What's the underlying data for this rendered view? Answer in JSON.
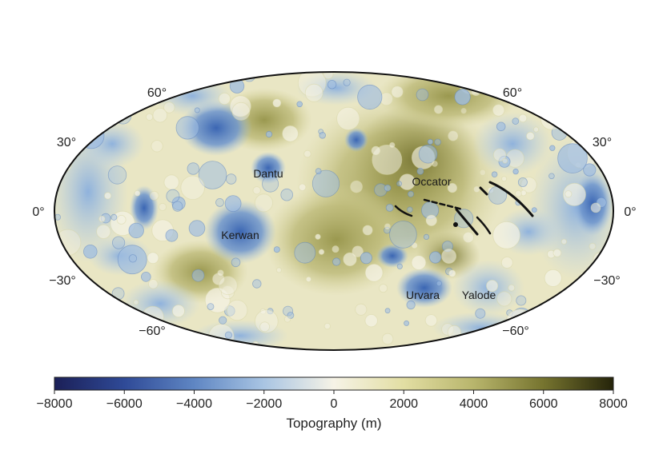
{
  "map": {
    "projection": "Mollweide (Hammer-style) global map",
    "latitude_labels": {
      "left": [
        "60°",
        "30°",
        "0°",
        "−30°",
        "−60°"
      ],
      "right": [
        "60°",
        "30°",
        "0°",
        "−30°",
        "−60°"
      ]
    },
    "features": [
      "Dantu",
      "Occator",
      "Kerwan",
      "Urvara",
      "Yalode"
    ]
  },
  "colorbar": {
    "label": "Topography (m)",
    "ticks": [
      "−8000",
      "−6000",
      "−4000",
      "−2000",
      "0",
      "2000",
      "4000",
      "6000",
      "8000"
    ],
    "range": [
      -8000,
      8000
    ],
    "colors": [
      "#1b1f57",
      "#3a5ba8",
      "#7fa6d6",
      "#c9dcee",
      "#f6f3e6",
      "#e4e0a8",
      "#b9b66e",
      "#7c7a36",
      "#2c2a08"
    ]
  }
}
